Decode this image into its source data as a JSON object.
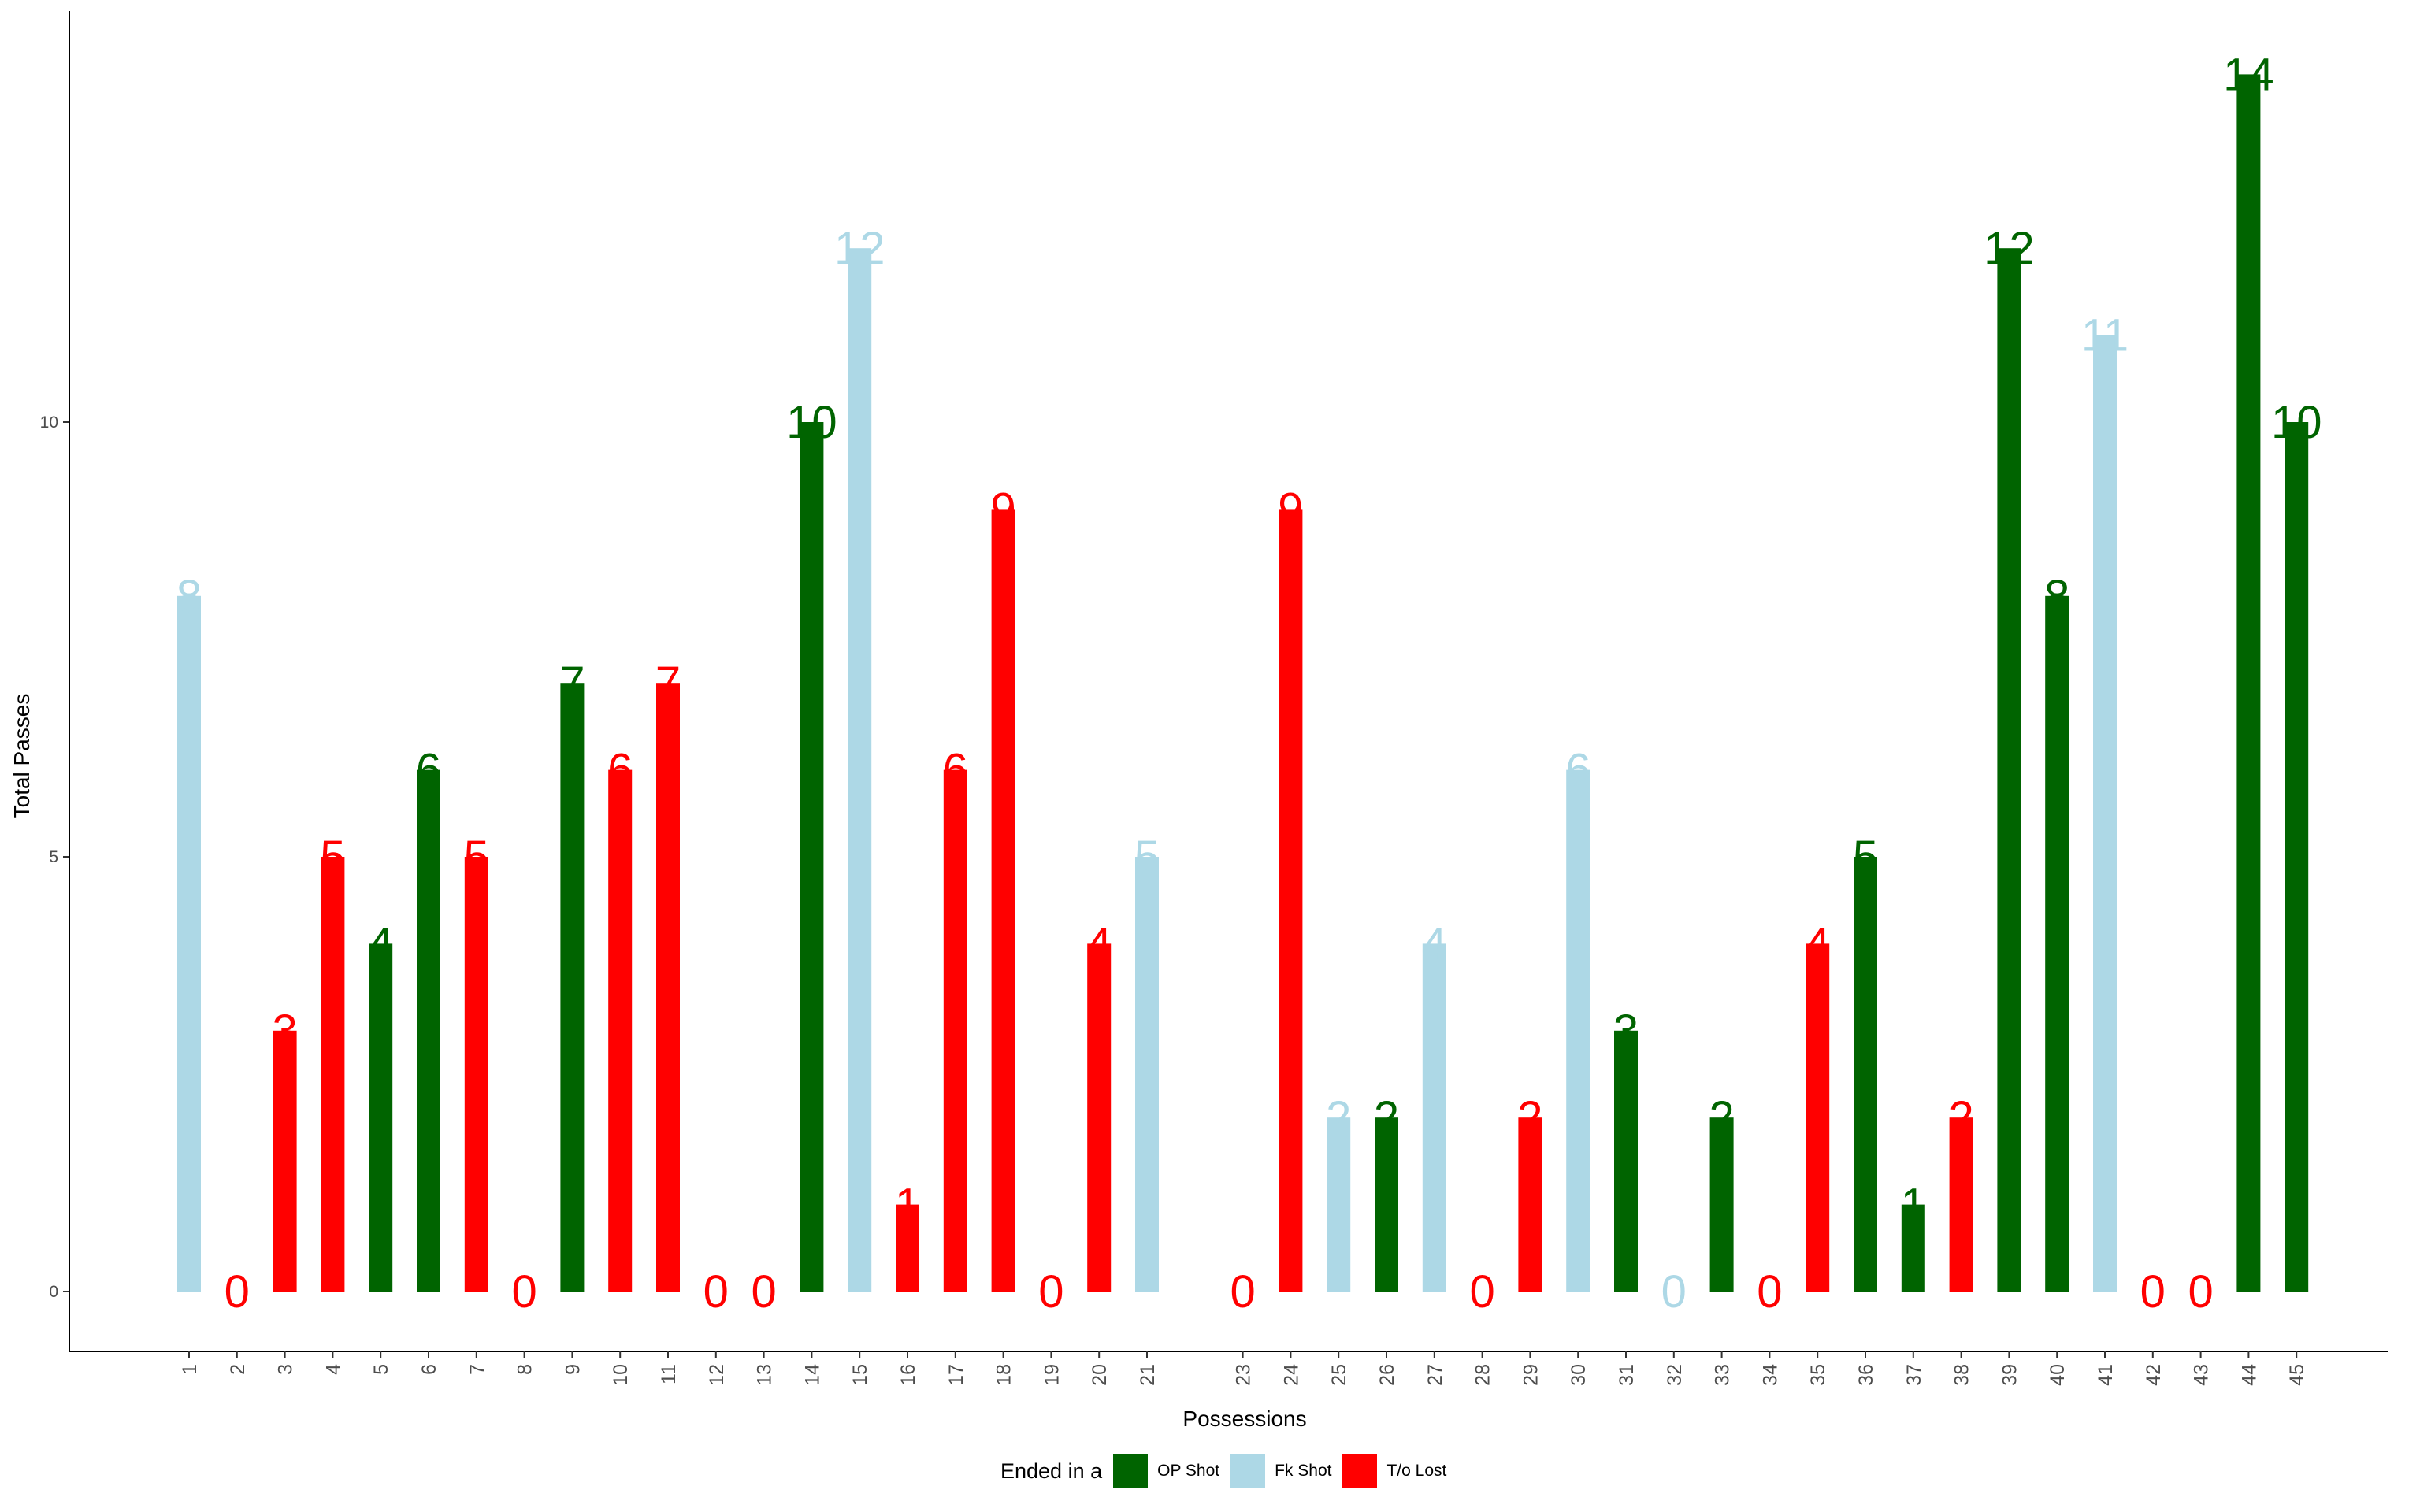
{
  "chart_data": {
    "type": "bar",
    "xlabel": "Possessions",
    "ylabel": "Total Passes",
    "ylim": [
      0,
      14
    ],
    "y_ticks": [
      0,
      5,
      10
    ],
    "grid": false,
    "legend_placement": "bottom",
    "legend_title": "Ended in a",
    "legend": [
      {
        "key": "op",
        "label": "OP Shot",
        "color": "#006400"
      },
      {
        "key": "fk",
        "label": "Fk Shot",
        "color": "#ADD8E6"
      },
      {
        "key": "to",
        "label": "T/o Lost",
        "color": "#FF0000"
      }
    ],
    "categories": [
      "1",
      "2",
      "3",
      "4",
      "5",
      "6",
      "7",
      "8",
      "9",
      "10",
      "11",
      "12",
      "13",
      "14",
      "15",
      "16",
      "17",
      "18",
      "19",
      "20",
      "21",
      "23",
      "24",
      "25",
      "26",
      "27",
      "28",
      "29",
      "30",
      "31",
      "32",
      "33",
      "34",
      "35",
      "36",
      "37",
      "38",
      "39",
      "40",
      "41",
      "42",
      "43",
      "44",
      "45"
    ],
    "values": [
      8,
      0,
      3,
      5,
      4,
      6,
      5,
      0,
      7,
      6,
      7,
      0,
      0,
      10,
      12,
      1,
      6,
      9,
      0,
      4,
      5,
      0,
      9,
      2,
      2,
      4,
      0,
      2,
      6,
      3,
      0,
      2,
      0,
      4,
      5,
      1,
      2,
      12,
      8,
      11,
      0,
      0,
      14,
      10
    ],
    "outcome": [
      "fk",
      "to",
      "to",
      "to",
      "op",
      "op",
      "to",
      "to",
      "op",
      "to",
      "to",
      "to",
      "to",
      "op",
      "fk",
      "to",
      "to",
      "to",
      "to",
      "to",
      "fk",
      "to",
      "to",
      "fk",
      "op",
      "fk",
      "to",
      "to",
      "fk",
      "op",
      "fk",
      "op",
      "to",
      "to",
      "op",
      "op",
      "to",
      "op",
      "op",
      "fk",
      "to",
      "to",
      "op",
      "op"
    ]
  }
}
